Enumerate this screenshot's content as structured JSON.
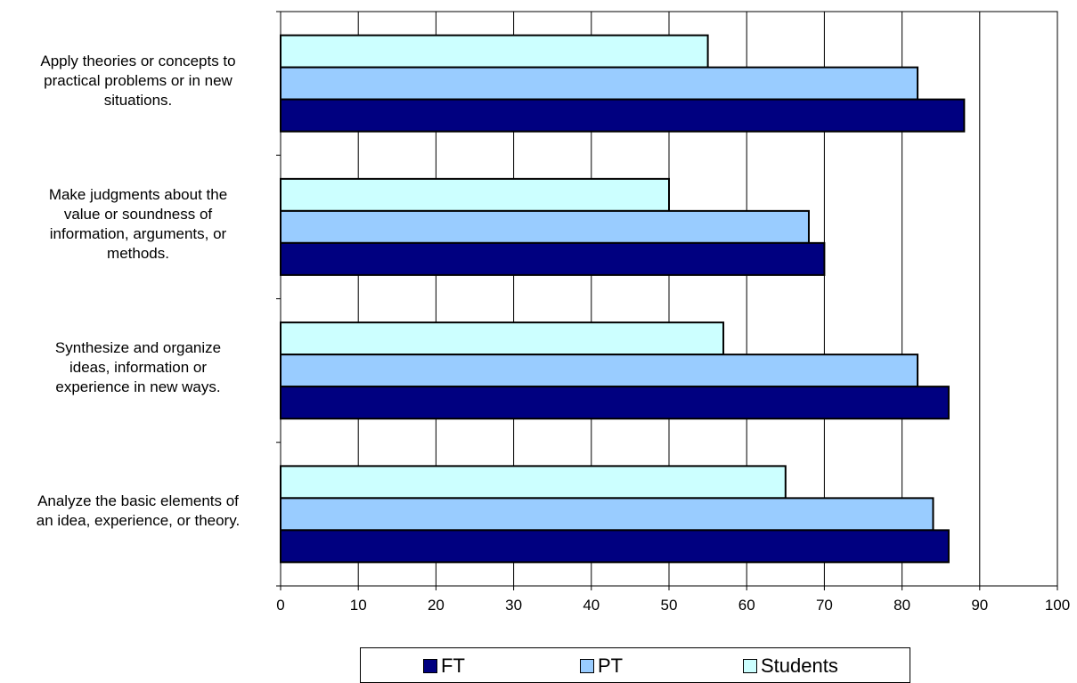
{
  "chart_data": {
    "type": "bar",
    "orientation": "horizontal",
    "categories": [
      "Apply theories or concepts to practical problems or in new situations.",
      "Make judgments about the value or soundness of information, arguments, or methods.",
      "Synthesize and organize ideas, information or experience in new ways.",
      "Analyze the basic elements of an idea, experience, or theory."
    ],
    "category_lines": [
      [
        "Apply theories or concepts to",
        "practical problems or in new",
        "situations."
      ],
      [
        "Make judgments about the",
        "value or soundness of",
        "information, arguments, or",
        "methods."
      ],
      [
        "Synthesize and organize",
        "ideas, information or",
        "experience in new ways."
      ],
      [
        "Analyze the basic elements of",
        "an idea, experience, or theory."
      ]
    ],
    "series": [
      {
        "name": "FT",
        "color": "#000080",
        "values": [
          88,
          70,
          86,
          86
        ]
      },
      {
        "name": "PT",
        "color": "#99ccff",
        "values": [
          82,
          68,
          82,
          84
        ]
      },
      {
        "name": "Students",
        "color": "#ccffff",
        "values": [
          55,
          50,
          57,
          65
        ]
      }
    ],
    "xlim": [
      0,
      100
    ],
    "xticks": [
      0,
      10,
      20,
      30,
      40,
      50,
      60,
      70,
      80,
      90,
      100
    ],
    "grid": true,
    "legend_position": "bottom",
    "title": "",
    "xlabel": "",
    "ylabel": ""
  }
}
